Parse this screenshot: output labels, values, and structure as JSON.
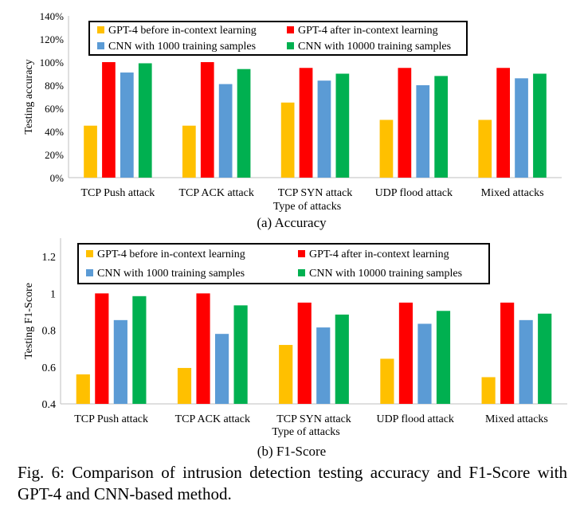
{
  "chart_data": [
    {
      "type": "bar",
      "subcaption": "(a) Accuracy",
      "xlabel": "Type of attacks",
      "ylabel": "Testing accuracy",
      "categories": [
        "TCP Push attack",
        "TCP ACK attack",
        "TCP SYN attack",
        "UDP flood attack",
        "Mixed attacks"
      ],
      "ylim": [
        0,
        140
      ],
      "yticks": [
        0,
        20,
        40,
        60,
        80,
        100,
        120,
        140
      ],
      "ytick_labels": [
        "0%",
        "20%",
        "40%",
        "60%",
        "80%",
        "100%",
        "120%",
        "140%"
      ],
      "legend_position": "top",
      "grid": false,
      "series": [
        {
          "name": "GPT-4 before in-context learning",
          "color": "#FFC000",
          "values": [
            45,
            45,
            65,
            50,
            50
          ]
        },
        {
          "name": "GPT-4 after in-context learning",
          "color": "#FF0000",
          "values": [
            100,
            100,
            95,
            95,
            95
          ]
        },
        {
          "name": "CNN with 1000 training samples",
          "color": "#5B9BD5",
          "values": [
            91,
            81,
            84,
            80,
            86
          ]
        },
        {
          "name": "CNN with 10000 training samples",
          "color": "#00B050",
          "values": [
            99,
            94,
            90,
            88,
            90
          ]
        }
      ]
    },
    {
      "type": "bar",
      "subcaption": "(b) F1-Score",
      "xlabel": "Type of attacks",
      "ylabel": "Testing F1-Score",
      "categories": [
        "TCP Push attack",
        "TCP ACK attack",
        "TCP SYN attack",
        "UDP flood attack",
        "Mixed attacks"
      ],
      "ylim": [
        0.4,
        1.3
      ],
      "yticks": [
        0.4,
        0.6,
        0.8,
        1.0,
        1.2
      ],
      "ytick_labels": [
        "0.4",
        "0.6",
        "0.8",
        "1",
        "1.2"
      ],
      "legend_position": "top",
      "grid": false,
      "series": [
        {
          "name": "GPT-4 before in-context learning",
          "color": "#FFC000",
          "values": [
            0.56,
            0.595,
            0.72,
            0.645,
            0.545
          ]
        },
        {
          "name": "GPT-4 after in-context learning",
          "color": "#FF0000",
          "values": [
            1.0,
            1.0,
            0.95,
            0.95,
            0.95
          ]
        },
        {
          "name": "CNN with 1000 training samples",
          "color": "#5B9BD5",
          "values": [
            0.855,
            0.78,
            0.815,
            0.835,
            0.855
          ]
        },
        {
          "name": "CNN with 10000 training samples",
          "color": "#00B050",
          "values": [
            0.985,
            0.935,
            0.885,
            0.905,
            0.89
          ]
        }
      ]
    }
  ],
  "caption": "Fig. 6: Comparison of intrusion detection testing accuracy and F1-Score with GPT-4 and CNN-based method."
}
